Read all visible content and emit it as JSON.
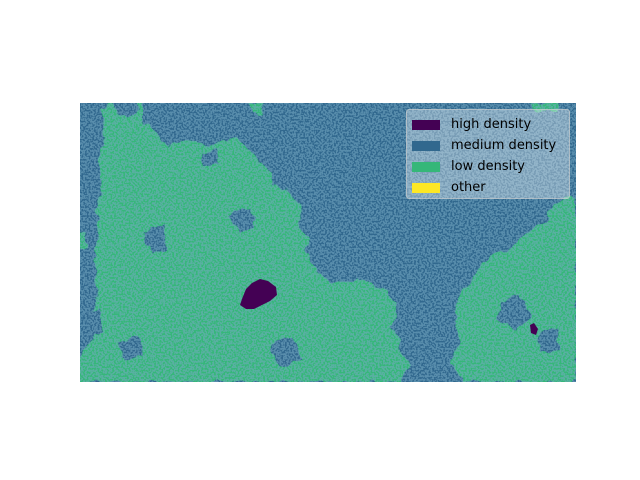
{
  "legend": {
    "entries": [
      {
        "label": "high density",
        "color": "#440154"
      },
      {
        "label": "medium density",
        "color": "#31688e"
      },
      {
        "label": "low density",
        "color": "#35b779"
      },
      {
        "label": "other",
        "color": "#fde725"
      }
    ],
    "placement": "upper right"
  },
  "map": {
    "background_class": "medium density",
    "axes_visible": false
  }
}
